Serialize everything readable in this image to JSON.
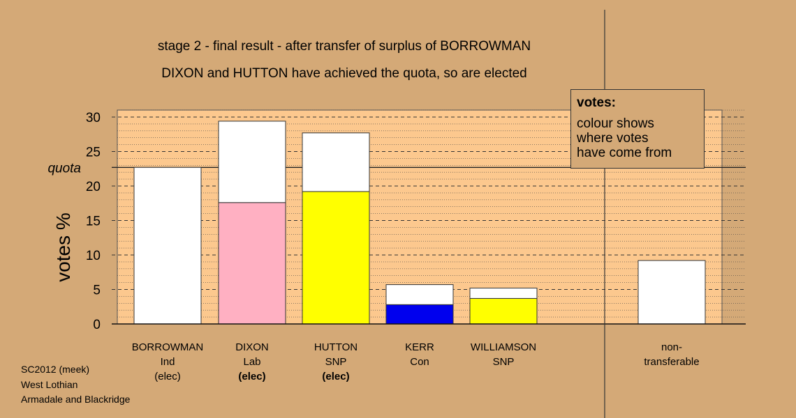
{
  "title_line1": "stage 2 - final result - after transfer of surplus of BORROWMAN",
  "title_line2": "DIXON and HUTTON have achieved the quota, so are elected",
  "legend": {
    "title": "votes:",
    "lines": [
      "colour shows",
      "where votes",
      "have come from"
    ]
  },
  "footnote": [
    "SC2012 (meek)",
    "West Lothian",
    "Armadale and Blackridge"
  ],
  "colors": {
    "background": "#d4a977",
    "plot_area": "#fcc88e",
    "white": "#ffffff",
    "pink": "#ffb0c2",
    "yellow": "#ffff00",
    "blue": "#0000ee"
  },
  "chart_data": {
    "type": "bar",
    "stacked": true,
    "ylabel": "votes %",
    "ylim": [
      0,
      31
    ],
    "yticks": [
      0,
      5,
      10,
      15,
      20,
      25,
      30
    ],
    "quota": {
      "label": "quota",
      "value": 22.7
    },
    "grid": true,
    "legend_position": "top-right",
    "bars": [
      {
        "lines": [
          "BORROWMAN",
          "Ind",
          "(elec)"
        ],
        "bold_status": false,
        "segments": [
          {
            "color": "white",
            "value": 22.7
          }
        ]
      },
      {
        "lines": [
          "DIXON",
          "Lab",
          "(elec)"
        ],
        "bold_status": true,
        "segments": [
          {
            "color": "pink",
            "value": 17.6
          },
          {
            "color": "white",
            "value": 11.8
          }
        ]
      },
      {
        "lines": [
          "HUTTON",
          "SNP",
          "(elec)"
        ],
        "bold_status": true,
        "segments": [
          {
            "color": "yellow",
            "value": 19.2
          },
          {
            "color": "white",
            "value": 8.5
          }
        ]
      },
      {
        "lines": [
          "KERR",
          "Con",
          ""
        ],
        "bold_status": false,
        "segments": [
          {
            "color": "blue",
            "value": 2.8
          },
          {
            "color": "white",
            "value": 2.9
          }
        ]
      },
      {
        "lines": [
          "WILLIAMSON",
          "SNP",
          ""
        ],
        "bold_status": false,
        "segments": [
          {
            "color": "yellow",
            "value": 3.7
          },
          {
            "color": "white",
            "value": 1.5
          }
        ]
      },
      {
        "lines": [
          "non-",
          "transferable",
          ""
        ],
        "bold_status": false,
        "segments": [
          {
            "color": "white",
            "value": 9.2
          }
        ]
      }
    ]
  }
}
